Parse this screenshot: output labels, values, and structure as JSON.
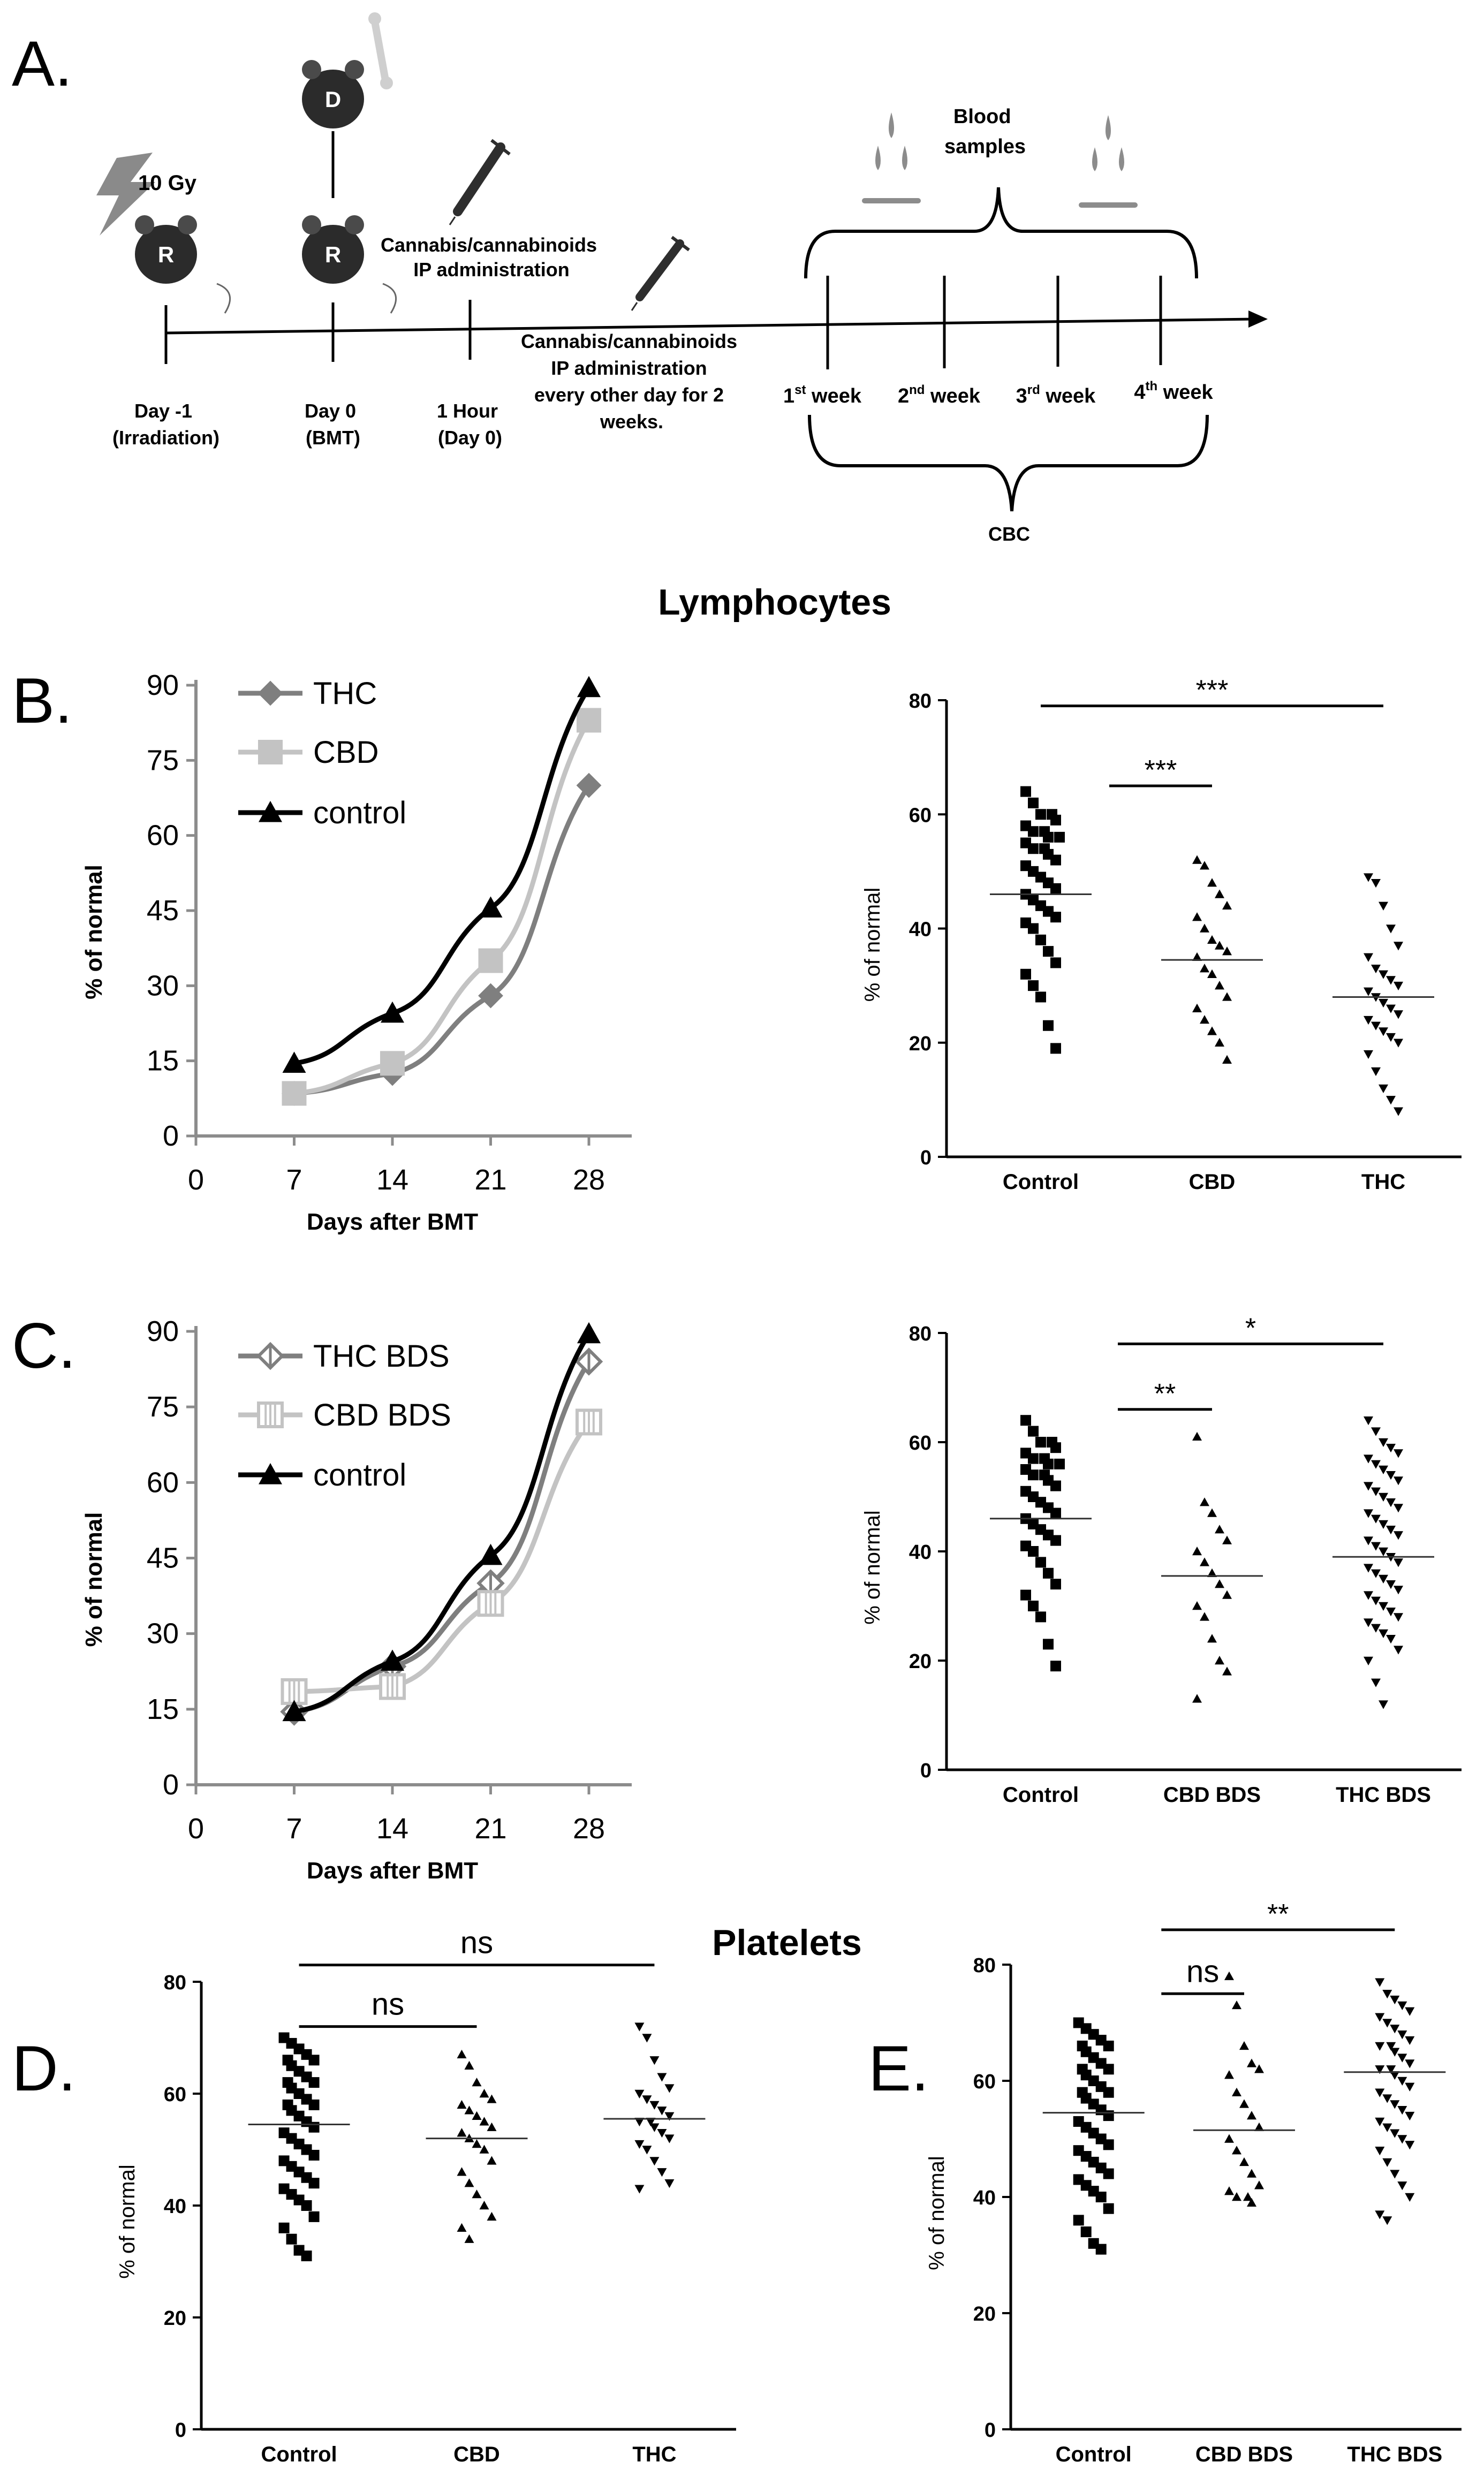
{
  "panelA": {
    "label": "A.",
    "dose": "10 Gy",
    "mouse_r": "R",
    "mouse_d": "D",
    "treatment1": [
      "Cannabis/cannabinoids",
      "IP administration"
    ],
    "treatment2": [
      "Cannabis/cannabinoids",
      "IP administration",
      "every other day for 2",
      "weeks."
    ],
    "blood": [
      "Blood",
      "samples"
    ],
    "cbc": "CBC",
    "timeline": [
      {
        "line1": "Day -1",
        "line2": "(Irradiation)"
      },
      {
        "line1": "Day 0",
        "line2": "(BMT)"
      },
      {
        "line1": "1 Hour",
        "line2": "(Day 0)"
      }
    ],
    "weeks": [
      {
        "num": "1",
        "sup": "st",
        "word": " week"
      },
      {
        "num": "2",
        "sup": "nd",
        "word": " week"
      },
      {
        "num": "3",
        "sup": "rd",
        "word": " week"
      },
      {
        "num": "4",
        "sup": "th",
        "word": " week"
      }
    ]
  },
  "section_titles": {
    "lymphocytes": "Lymphocytes",
    "platelets": "Platelets"
  },
  "colors": {
    "thc": "#7f7f7f",
    "cbd": "#c3c3c3",
    "control": "#000000"
  },
  "chart_data": [
    {
      "id": "B-line",
      "type": "line",
      "panel_label": "B.",
      "xlabel": "Days after BMT",
      "ylabel": "% of normal",
      "xlim": [
        0,
        28
      ],
      "ylim": [
        0,
        90
      ],
      "xticks": [
        "0",
        "7",
        "14",
        "21",
        "28"
      ],
      "yticks": [
        "0",
        "15",
        "30",
        "45",
        "60",
        "75",
        "90"
      ],
      "x": [
        7,
        14,
        21,
        28
      ],
      "series": [
        {
          "name": "THC",
          "marker": "diamond",
          "values": [
            8.5,
            12.5,
            28,
            70
          ]
        },
        {
          "name": "CBD",
          "marker": "square",
          "values": [
            8.5,
            14.5,
            35,
            83
          ]
        },
        {
          "name": "control",
          "marker": "triangle",
          "values": [
            14.5,
            24.5,
            45.5,
            89.5
          ]
        }
      ]
    },
    {
      "id": "B-scatter",
      "type": "scatter",
      "ylabel": "% of normal",
      "ylim": [
        0,
        80
      ],
      "yticks": [
        "0",
        "20",
        "40",
        "60",
        "80"
      ],
      "categories": [
        "Control",
        "CBD",
        "THC"
      ],
      "markers": [
        "square",
        "triangle",
        "triangle-down"
      ],
      "groups": [
        {
          "name": "Control",
          "mean": 46,
          "values": [
            64,
            62,
            60,
            60,
            59,
            58,
            57,
            57,
            56,
            56,
            55,
            54,
            54,
            53,
            52,
            51,
            50,
            49,
            48,
            47,
            46,
            45,
            44,
            43,
            42,
            41,
            40,
            38,
            36,
            34,
            32,
            30,
            28,
            23,
            19
          ]
        },
        {
          "name": "CBD",
          "mean": 34.5,
          "values": [
            52,
            51,
            48,
            46,
            44,
            42,
            40,
            38,
            37,
            36,
            35,
            33,
            32,
            30,
            28,
            26,
            24,
            22,
            20,
            17
          ]
        },
        {
          "name": "THC",
          "mean": 28,
          "values": [
            49,
            48,
            44,
            40,
            37,
            35,
            33,
            32,
            31,
            30,
            29,
            28,
            27,
            26,
            25,
            24,
            23,
            22,
            21,
            20,
            18,
            15,
            12,
            10,
            8
          ]
        }
      ],
      "annotations": [
        {
          "text": "***",
          "from": 0,
          "to": 2,
          "y": 79
        },
        {
          "text": "***",
          "from": 0.4,
          "to": 1,
          "y": 65
        }
      ]
    },
    {
      "id": "C-line",
      "type": "line",
      "panel_label": "C.",
      "xlabel": "Days after BMT",
      "ylabel": "% of normal",
      "xlim": [
        0,
        28
      ],
      "ylim": [
        0,
        90
      ],
      "xticks": [
        "0",
        "7",
        "14",
        "21",
        "28"
      ],
      "yticks": [
        "0",
        "15",
        "30",
        "45",
        "60",
        "75",
        "90"
      ],
      "x": [
        7,
        14,
        21,
        28
      ],
      "series": [
        {
          "name": "THC BDS",
          "marker": "diamond-open",
          "values": [
            14.5,
            23.5,
            40,
            84
          ]
        },
        {
          "name": "CBD BDS",
          "marker": "square-open",
          "values": [
            18.5,
            19.5,
            36,
            72
          ]
        },
        {
          "name": "control",
          "marker": "triangle",
          "values": [
            14.5,
            24.5,
            45.5,
            89.5
          ]
        }
      ]
    },
    {
      "id": "C-scatter",
      "type": "scatter",
      "ylabel": "% of normal",
      "ylim": [
        0,
        80
      ],
      "yticks": [
        "0",
        "20",
        "40",
        "60",
        "80"
      ],
      "categories": [
        "Control",
        "CBD BDS",
        "THC BDS"
      ],
      "markers": [
        "square",
        "triangle",
        "triangle-down"
      ],
      "groups": [
        {
          "name": "Control",
          "mean": 46,
          "values": [
            64,
            62,
            60,
            60,
            59,
            58,
            57,
            57,
            56,
            56,
            55,
            54,
            54,
            53,
            52,
            51,
            50,
            49,
            48,
            47,
            46,
            45,
            44,
            43,
            42,
            41,
            40,
            38,
            36,
            34,
            32,
            30,
            28,
            23,
            19
          ]
        },
        {
          "name": "CBD BDS",
          "mean": 35.5,
          "values": [
            61,
            49,
            47,
            44,
            42,
            40,
            38,
            36,
            34,
            32,
            30,
            28,
            24,
            20,
            18,
            13
          ]
        },
        {
          "name": "THC BDS",
          "mean": 39,
          "values": [
            64,
            62,
            60,
            59,
            58,
            57,
            56,
            55,
            54,
            53,
            52,
            51,
            50,
            49,
            48,
            47,
            46,
            45,
            44,
            43,
            42,
            41,
            40,
            39,
            38,
            37,
            36,
            35,
            34,
            33,
            32,
            31,
            30,
            29,
            28,
            27,
            26,
            25,
            24,
            22,
            20,
            16,
            12
          ]
        }
      ],
      "annotations": [
        {
          "text": "*",
          "from": 0.45,
          "to": 2,
          "y": 78
        },
        {
          "text": "**",
          "from": 0.45,
          "to": 1,
          "y": 66
        }
      ]
    },
    {
      "id": "D-scatter",
      "type": "scatter",
      "panel_label": "D.",
      "ylabel": "% of normal",
      "ylim": [
        0,
        80
      ],
      "yticks": [
        "0",
        "20",
        "40",
        "60",
        "80"
      ],
      "categories": [
        "Control",
        "CBD",
        "THC"
      ],
      "markers": [
        "square",
        "triangle",
        "triangle-down"
      ],
      "groups": [
        {
          "name": "Control",
          "mean": 54.5,
          "values": [
            70,
            69,
            68,
            67,
            66,
            66,
            65,
            64,
            63,
            62,
            62,
            61,
            60,
            59,
            58,
            58,
            57,
            56,
            55,
            54,
            53,
            52,
            51,
            50,
            49,
            48,
            47,
            46,
            45,
            44,
            43,
            42,
            41,
            40,
            38,
            36,
            34,
            32,
            31
          ]
        },
        {
          "name": "CBD",
          "mean": 52,
          "values": [
            67,
            65,
            62,
            60,
            59,
            58,
            57,
            56,
            55,
            54,
            53,
            52,
            51,
            50,
            48,
            46,
            44,
            42,
            40,
            38,
            36,
            34
          ]
        },
        {
          "name": "THC",
          "mean": 55.5,
          "values": [
            72,
            70,
            66,
            63,
            61,
            60,
            59,
            58,
            57,
            56,
            55,
            55,
            54,
            53,
            52,
            51,
            50,
            48,
            46,
            44,
            43
          ]
        }
      ],
      "annotations": [
        {
          "text": "ns",
          "from": 0,
          "to": 2,
          "y": 83
        },
        {
          "text": "ns",
          "from": 0,
          "to": 1,
          "y": 72
        }
      ]
    },
    {
      "id": "E-scatter",
      "type": "scatter",
      "panel_label": "E.",
      "ylabel": "% of normal",
      "ylim": [
        0,
        80
      ],
      "yticks": [
        "0",
        "20",
        "40",
        "60",
        "80"
      ],
      "categories": [
        "Control",
        "CBD BDS",
        "THC BDS"
      ],
      "markers": [
        "square",
        "triangle",
        "triangle-down"
      ],
      "groups": [
        {
          "name": "Control",
          "mean": 54.5,
          "values": [
            70,
            69,
            68,
            67,
            66,
            66,
            65,
            64,
            63,
            62,
            62,
            61,
            60,
            59,
            58,
            58,
            57,
            56,
            55,
            54,
            53,
            52,
            51,
            50,
            49,
            48,
            47,
            46,
            45,
            44,
            43,
            42,
            41,
            40,
            38,
            36,
            34,
            32,
            31
          ]
        },
        {
          "name": "CBD BDS",
          "mean": 51.5,
          "values": [
            78,
            73,
            66,
            63,
            62,
            61,
            58,
            56,
            54,
            52,
            50,
            48,
            46,
            44,
            42,
            41,
            40,
            40,
            39
          ]
        },
        {
          "name": "THC BDS",
          "mean": 61.5,
          "values": [
            77,
            75,
            74,
            73,
            72,
            71,
            70,
            69,
            68,
            67,
            66,
            66,
            65,
            64,
            63,
            62,
            62,
            61,
            60,
            59,
            58,
            57,
            56,
            55,
            54,
            53,
            52,
            51,
            50,
            49,
            48,
            46,
            44,
            42,
            40,
            37,
            36
          ]
        }
      ],
      "annotations": [
        {
          "text": "**",
          "from": 0.45,
          "to": 2,
          "y": 86
        },
        {
          "text": "ns",
          "from": 0.45,
          "to": 1,
          "y": 75
        }
      ]
    }
  ]
}
